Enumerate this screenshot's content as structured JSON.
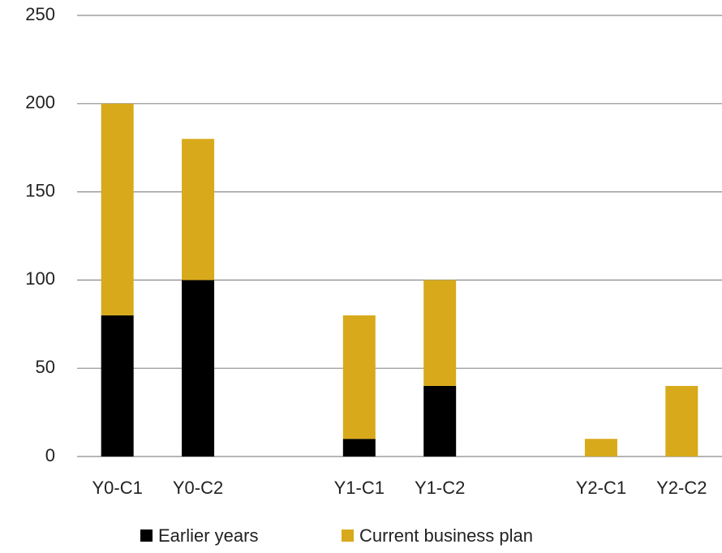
{
  "chart_data": {
    "type": "stacked_bar",
    "categories": [
      "Y0-C1",
      "Y0-C2",
      null,
      "Y1-C1",
      "Y1-C2",
      null,
      "Y2-C1",
      "Y2-C2"
    ],
    "series": [
      {
        "name": "Earlier years",
        "color": "#000000",
        "values": [
          80,
          100,
          null,
          10,
          40,
          null,
          0,
          0
        ]
      },
      {
        "name": "Current business plan",
        "color": "#d8a91a",
        "values": [
          120,
          80,
          null,
          70,
          60,
          null,
          10,
          40
        ]
      }
    ],
    "ylim": [
      0,
      250
    ],
    "yticks": [
      0,
      50,
      100,
      150,
      200,
      250
    ],
    "grid": true,
    "legend": "bottom"
  }
}
